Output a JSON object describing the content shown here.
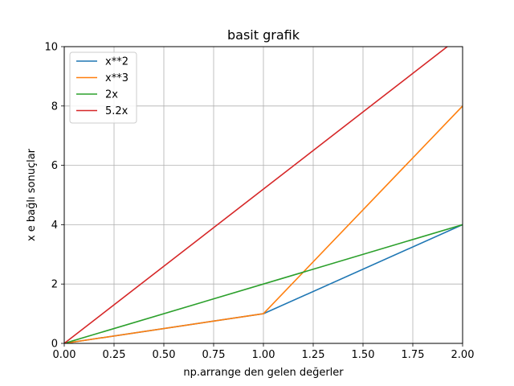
{
  "chart_data": {
    "type": "line",
    "title": "basit grafik",
    "xlabel": "np.arrange den gelen değerler",
    "ylabel": "x e bağlı sonuçlar",
    "xlim": [
      0,
      2
    ],
    "ylim": [
      0,
      10
    ],
    "grid": true,
    "legend_position": "top-left",
    "x_ticks": [
      "0.00",
      "0.25",
      "0.50",
      "0.75",
      "1.00",
      "1.25",
      "1.50",
      "1.75",
      "2.00"
    ],
    "y_ticks": [
      "0",
      "2",
      "4",
      "6",
      "8",
      "10"
    ],
    "x_tick_values": [
      0,
      0.25,
      0.5,
      0.75,
      1.0,
      1.25,
      1.5,
      1.75,
      2.0
    ],
    "y_tick_values": [
      0,
      2,
      4,
      6,
      8,
      10
    ],
    "series": [
      {
        "name": "x**2",
        "color": "#1f77b4",
        "x": [
          0,
          1,
          2
        ],
        "y": [
          0,
          1,
          4
        ]
      },
      {
        "name": "x**3",
        "color": "#ff7f0e",
        "x": [
          0,
          1,
          2
        ],
        "y": [
          0,
          1,
          8
        ]
      },
      {
        "name": "2x",
        "color": "#2ca02c",
        "x": [
          0,
          1,
          2
        ],
        "y": [
          0,
          2,
          4
        ]
      },
      {
        "name": "5.2x",
        "color": "#d62728",
        "x": [
          0,
          1,
          2
        ],
        "y": [
          0,
          5.2,
          10.4
        ]
      }
    ]
  }
}
